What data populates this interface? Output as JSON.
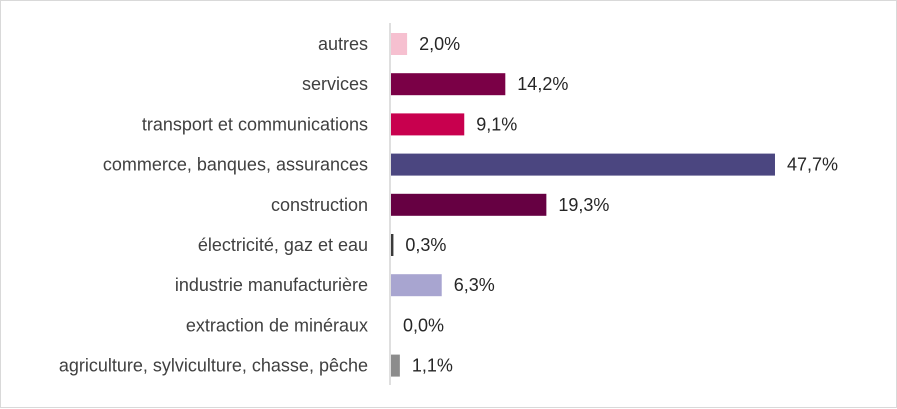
{
  "chart_data": {
    "type": "bar",
    "orientation": "horizontal",
    "title": "",
    "xlabel": "",
    "ylabel": "",
    "grid": false,
    "categories": [
      "autres",
      "services",
      "transport et communications",
      "commerce, banques, assurances",
      "construction",
      "électricité, gaz et eau",
      "industrie manufacturière",
      "extraction de minéraux",
      "agriculture, sylviculture, chasse, pêche"
    ],
    "values": [
      2.0,
      14.2,
      9.1,
      47.7,
      19.3,
      0.3,
      6.3,
      0.0,
      1.1
    ],
    "data_labels": [
      "2,0%",
      "14,2%",
      "9,1%",
      "47,7%",
      "19,3%",
      "0,3%",
      "6,3%",
      "0,0%",
      "1,1%"
    ],
    "colors": [
      "#f6c0d0",
      "#7a0046",
      "#c8004e",
      "#4b4680",
      "#660042",
      "#3a3a3a",
      "#a8a5d0",
      "#dddddd",
      "#8c8c8c"
    ],
    "xlim": [
      0,
      50
    ]
  }
}
